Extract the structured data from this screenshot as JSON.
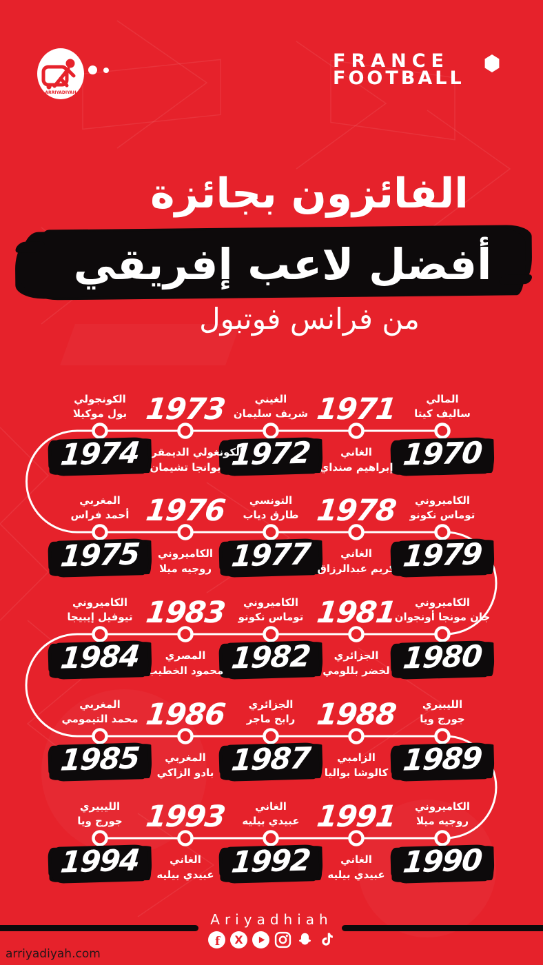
{
  "header": {
    "logo_text": "ARRIYADIYAH",
    "brand_line1": "FRANCE",
    "brand_line2": "FOOTBALL"
  },
  "title": {
    "line1": "الفائزون بجائزة",
    "line2": "أفضل لاعب إفريقي",
    "line3": "من فرانس فوتبول"
  },
  "timeline": [
    {
      "year": "1970",
      "nationality": "المالي",
      "player": "ساليف كيتا"
    },
    {
      "year": "1971",
      "nationality": "الغاني",
      "player": "إبراهيم صنداي"
    },
    {
      "year": "1972",
      "nationality": "الغيني",
      "player": "شريف سليمان"
    },
    {
      "year": "1973",
      "nationality": "الكونغولي الديمقراطي",
      "player": "بوانجا تشيمان"
    },
    {
      "year": "1974",
      "nationality": "الكونجولي",
      "player": "بول موكيلا"
    },
    {
      "year": "1975",
      "nationality": "المغربي",
      "player": "أحمد فراس"
    },
    {
      "year": "1976",
      "nationality": "الكاميروني",
      "player": "روجيه ميلا"
    },
    {
      "year": "1977",
      "nationality": "التونسي",
      "player": "طارق دياب"
    },
    {
      "year": "1978",
      "nationality": "الغاني",
      "player": "كريم عبدالرزاق"
    },
    {
      "year": "1979",
      "nationality": "الكاميروني",
      "player": "توماس نكونو"
    },
    {
      "year": "1980",
      "nationality": "الكاميروني",
      "player": "جان مونجا أونجوان"
    },
    {
      "year": "1981",
      "nationality": "الجزائري",
      "player": "لخضر بللومي"
    },
    {
      "year": "1982",
      "nationality": "الكاميروني",
      "player": "توماس نكونو"
    },
    {
      "year": "1983",
      "nationality": "المصري",
      "player": "محمود الخطيب"
    },
    {
      "year": "1984",
      "nationality": "الكاميروني",
      "player": "تيوفيل إيبيجا"
    },
    {
      "year": "1985",
      "nationality": "المغربي",
      "player": "محمد التيمومي"
    },
    {
      "year": "1986",
      "nationality": "المغربي",
      "player": "بادو الزاكي"
    },
    {
      "year": "1987",
      "nationality": "الجزائري",
      "player": "رابح ماجر"
    },
    {
      "year": "1988",
      "nationality": "الزامبي",
      "player": "كالوشا بواليا"
    },
    {
      "year": "1989",
      "nationality": "الليبيري",
      "player": "جورج ويا"
    },
    {
      "year": "1990",
      "nationality": "الكاميروني",
      "player": "روجيه ميلا"
    },
    {
      "year": "1991",
      "nationality": "الغاني",
      "player": "عبيدي بيليه"
    },
    {
      "year": "1992",
      "nationality": "الغاني",
      "player": "عبيدي بيليه"
    },
    {
      "year": "1993",
      "nationality": "الغاني",
      "player": "عبيدي بيليه"
    },
    {
      "year": "1994",
      "nationality": "الليبيري",
      "player": "جورج ويا"
    }
  ],
  "footer": {
    "brand": "Ariyadhiah",
    "social_icons": [
      "facebook-icon",
      "x-icon",
      "youtube-icon",
      "instagram-icon",
      "snapchat-icon",
      "tiktok-icon"
    ],
    "website": "arriyadiyah.com"
  },
  "colors": {
    "background": "#e6222b",
    "ink": "#0d0a0b",
    "white": "#ffffff"
  }
}
